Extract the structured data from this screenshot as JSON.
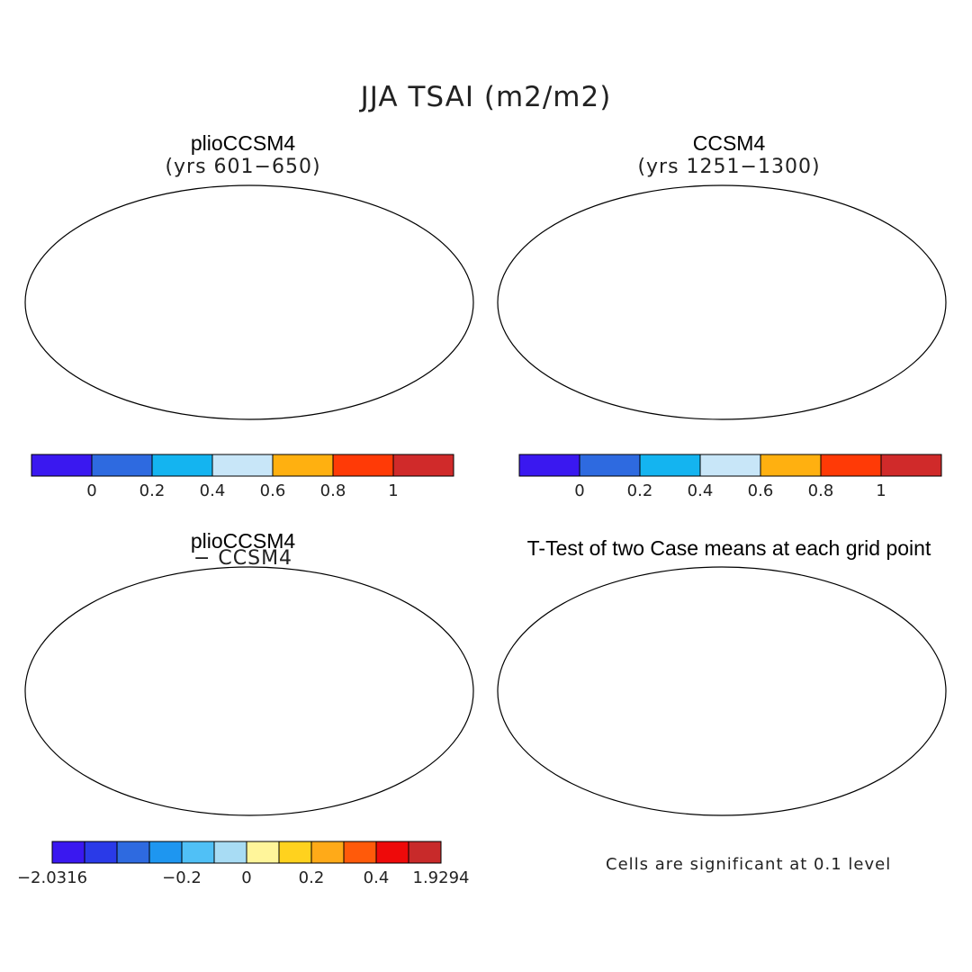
{
  "figure": {
    "title": "JJA TSAI (m2/m2)"
  },
  "panels": {
    "top_left": {
      "title": "plioCCSM4",
      "subtitle": "(yrs 601−650)"
    },
    "top_right": {
      "title": "CCSM4",
      "subtitle": "(yrs 1251−1300)"
    },
    "bottom_left": {
      "title": "plioCCSM4",
      "subtitle": "− CCSM4"
    },
    "bottom_right": {
      "title": "T-Test of two Case means at each grid point",
      "note": "Cells are significant at 0.1 level"
    }
  },
  "colorbars": {
    "absolute": {
      "colors": [
        "#3a18f0",
        "#2e6ae0",
        "#14b4f0",
        "#c8e6f8",
        "#ffb010",
        "#ff3a06",
        "#d02a2a"
      ],
      "tick_labels": [
        "0",
        "0.2",
        "0.4",
        "0.6",
        "0.8",
        "1"
      ]
    },
    "difference": {
      "colors": [
        "#3a18f0",
        "#2a3ae8",
        "#2e6ae0",
        "#1e96f0",
        "#50c0f6",
        "#a8dcf4",
        "#fff59a",
        "#ffd21e",
        "#ffaa18",
        "#ff5a0a",
        "#ee0a0a",
        "#c82a2a"
      ],
      "tick_labels": [
        "−2.0316",
        "−0.2",
        "0",
        "0.2",
        "0.4",
        "1.9294"
      ]
    }
  },
  "significance_color": "#ff0000"
}
